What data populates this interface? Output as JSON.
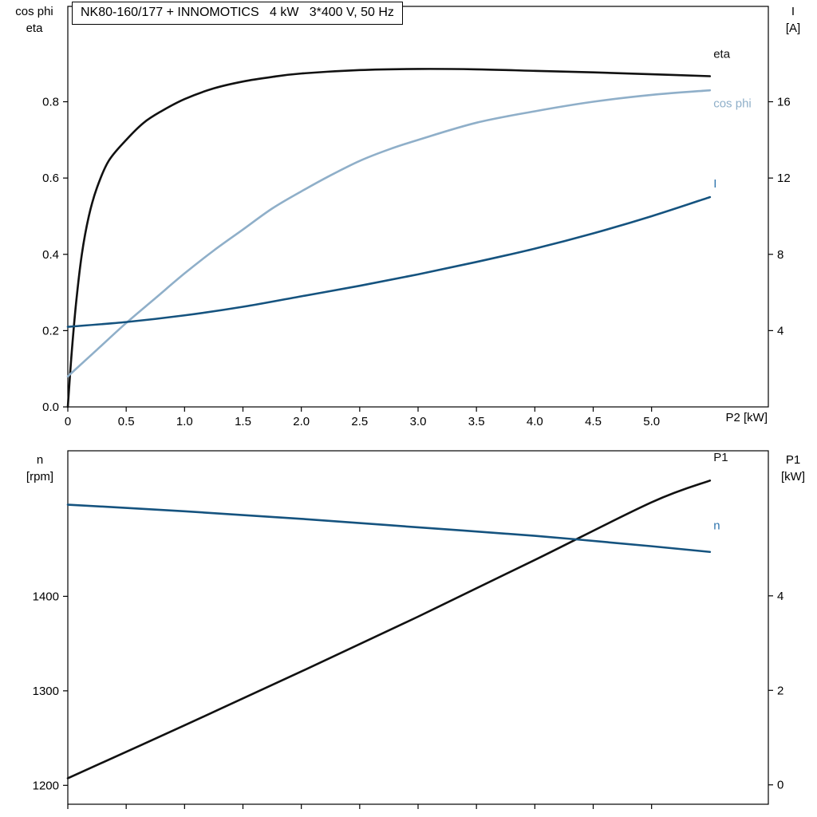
{
  "title": "NK80-160/177 + INNOMOTICS   4 kW   3*400 V, 50 Hz",
  "colors": {
    "curve_black": "#111111",
    "curve_lightblue": "#8fafc9",
    "curve_darkblue": "#15537f",
    "label_blue": "#2e74ad",
    "axis": "#000000"
  },
  "corner_labels": {
    "top_left": [
      "cos phi",
      "eta"
    ],
    "top_right": [
      "I",
      "[A]"
    ],
    "bottom_left": [
      "n",
      "[rpm]"
    ],
    "bottom_right": [
      "P1",
      "[kW]"
    ]
  },
  "x_axis_end_label": "P2 [kW]",
  "chart_data": [
    {
      "type": "line",
      "title": "NK80-160/177 + INNOMOTICS 4 kW 3*400 V, 50 Hz",
      "x_axis": {
        "label": "P2 [kW]",
        "min": 0,
        "max": 6.0,
        "ticks": [
          0,
          0.5,
          1.0,
          1.5,
          2.0,
          2.5,
          3.0,
          3.5,
          4.0,
          4.5,
          5.0
        ],
        "tick_labels": [
          "0",
          "0.5",
          "1.0",
          "1.5",
          "2.0",
          "2.5",
          "3.0",
          "3.5",
          "4.0",
          "4.5",
          "5.0"
        ],
        "show_tick_labels": true
      },
      "y_left": {
        "label": "cos phi / eta",
        "min": 0,
        "max": 1.05,
        "ticks": [
          0.0,
          0.2,
          0.4,
          0.6,
          0.8
        ],
        "tick_labels": [
          "0.0",
          "0.2",
          "0.4",
          "0.6",
          "0.8"
        ]
      },
      "y_right": {
        "label": "I [A]",
        "min": 0,
        "max": 21,
        "ticks": [
          4,
          8,
          12,
          16
        ],
        "tick_labels": [
          "4",
          "8",
          "12",
          "16"
        ]
      },
      "series": [
        {
          "name": "eta",
          "axis": "left",
          "color": "curve_black",
          "label_color": "curve_black",
          "label": {
            "text": "eta",
            "x": 5.53,
            "y": 0.915
          },
          "x": [
            0,
            0.03,
            0.07,
            0.12,
            0.18,
            0.25,
            0.35,
            0.5,
            0.65,
            0.8,
            1.0,
            1.25,
            1.5,
            1.75,
            2.0,
            2.5,
            3.0,
            3.5,
            4.0,
            4.5,
            5.0,
            5.5
          ],
          "y": [
            0,
            0.13,
            0.27,
            0.4,
            0.5,
            0.575,
            0.645,
            0.7,
            0.745,
            0.775,
            0.807,
            0.835,
            0.853,
            0.865,
            0.874,
            0.883,
            0.886,
            0.885,
            0.881,
            0.877,
            0.872,
            0.867
          ]
        },
        {
          "name": "cos phi",
          "axis": "left",
          "color": "curve_lightblue",
          "label_color": "curve_lightblue",
          "label": {
            "text": "cos phi",
            "x": 5.53,
            "y": 0.785
          },
          "x": [
            0,
            0.25,
            0.5,
            0.75,
            1.0,
            1.25,
            1.5,
            1.75,
            2.0,
            2.25,
            2.5,
            2.75,
            3.0,
            3.5,
            4.0,
            4.5,
            5.0,
            5.5
          ],
          "y": [
            0.08,
            0.15,
            0.22,
            0.285,
            0.35,
            0.41,
            0.465,
            0.52,
            0.565,
            0.607,
            0.645,
            0.675,
            0.7,
            0.745,
            0.775,
            0.8,
            0.818,
            0.83
          ]
        },
        {
          "name": "I",
          "axis": "right",
          "color": "curve_darkblue",
          "label_color": "label_blue",
          "label": {
            "text": "I",
            "x": 5.53,
            "y": 11.5
          },
          "x": [
            0,
            0.5,
            1.0,
            1.5,
            2.0,
            2.5,
            3.0,
            3.5,
            4.0,
            4.5,
            5.0,
            5.5
          ],
          "y": [
            4.2,
            4.45,
            4.8,
            5.25,
            5.8,
            6.35,
            6.95,
            7.6,
            8.3,
            9.1,
            10.0,
            11.0
          ]
        }
      ]
    },
    {
      "type": "line",
      "x_axis": {
        "label": "",
        "min": 0,
        "max": 6.0,
        "ticks": [
          0,
          0.5,
          1.0,
          1.5,
          2.0,
          2.5,
          3.0,
          3.5,
          4.0,
          4.5,
          5.0
        ],
        "tick_labels": [],
        "show_tick_labels": false
      },
      "y_left": {
        "label": "n [rpm]",
        "min": 1180,
        "max": 1554,
        "ticks": [
          1200,
          1300,
          1400
        ],
        "tick_labels": [
          "1200",
          "1300",
          "1400"
        ]
      },
      "y_right": {
        "label": "P1 [kW]",
        "min": -0.41,
        "max": 7.07,
        "ticks": [
          0,
          2,
          4
        ],
        "tick_labels": [
          "0",
          "2",
          "4"
        ]
      },
      "series": [
        {
          "name": "P1",
          "axis": "right",
          "color": "curve_black",
          "label_color": "curve_black",
          "label": {
            "text": "P1",
            "x": 5.53,
            "y": 6.85
          },
          "x": [
            0,
            1,
            2,
            3,
            4,
            5,
            5.5
          ],
          "y": [
            0.14,
            1.26,
            2.4,
            3.56,
            4.76,
            5.98,
            6.44
          ]
        },
        {
          "name": "n",
          "axis": "left",
          "color": "curve_darkblue",
          "label_color": "label_blue",
          "label": {
            "text": "n",
            "x": 5.53,
            "y": 1471
          },
          "x": [
            0,
            1,
            2,
            3,
            4,
            5,
            5.5
          ],
          "y": [
            1497,
            1490,
            1482,
            1473,
            1464,
            1453,
            1447
          ]
        }
      ]
    }
  ]
}
